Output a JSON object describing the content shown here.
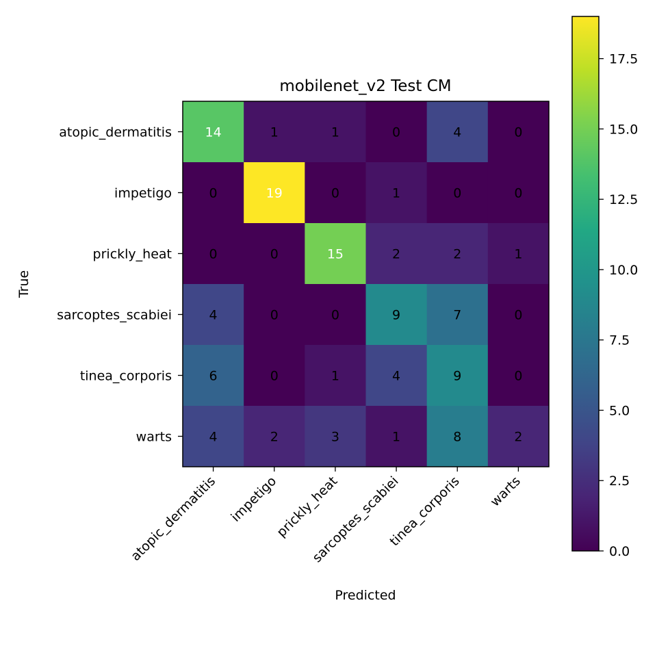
{
  "chart_data": {
    "type": "heatmap",
    "title": "mobilenet_v2 Test CM",
    "xlabel": "Predicted",
    "ylabel": "True",
    "x_categories": [
      "atopic_dermatitis",
      "impetigo",
      "prickly_heat",
      "sarcoptes_scabiei",
      "tinea_corporis",
      "warts"
    ],
    "y_categories": [
      "atopic_dermatitis",
      "impetigo",
      "prickly_heat",
      "sarcoptes_scabiei",
      "tinea_corporis",
      "warts"
    ],
    "matrix": [
      [
        14,
        1,
        1,
        0,
        4,
        0
      ],
      [
        0,
        19,
        0,
        1,
        0,
        0
      ],
      [
        0,
        0,
        15,
        2,
        2,
        1
      ],
      [
        4,
        0,
        0,
        9,
        7,
        0
      ],
      [
        6,
        0,
        1,
        4,
        9,
        0
      ],
      [
        4,
        2,
        3,
        1,
        8,
        2
      ]
    ],
    "colormap": "viridis",
    "vmin": 0,
    "vmax": 19,
    "colorbar_ticks": [
      "0.0",
      "2.5",
      "5.0",
      "7.5",
      "10.0",
      "12.5",
      "15.0",
      "17.5"
    ]
  }
}
